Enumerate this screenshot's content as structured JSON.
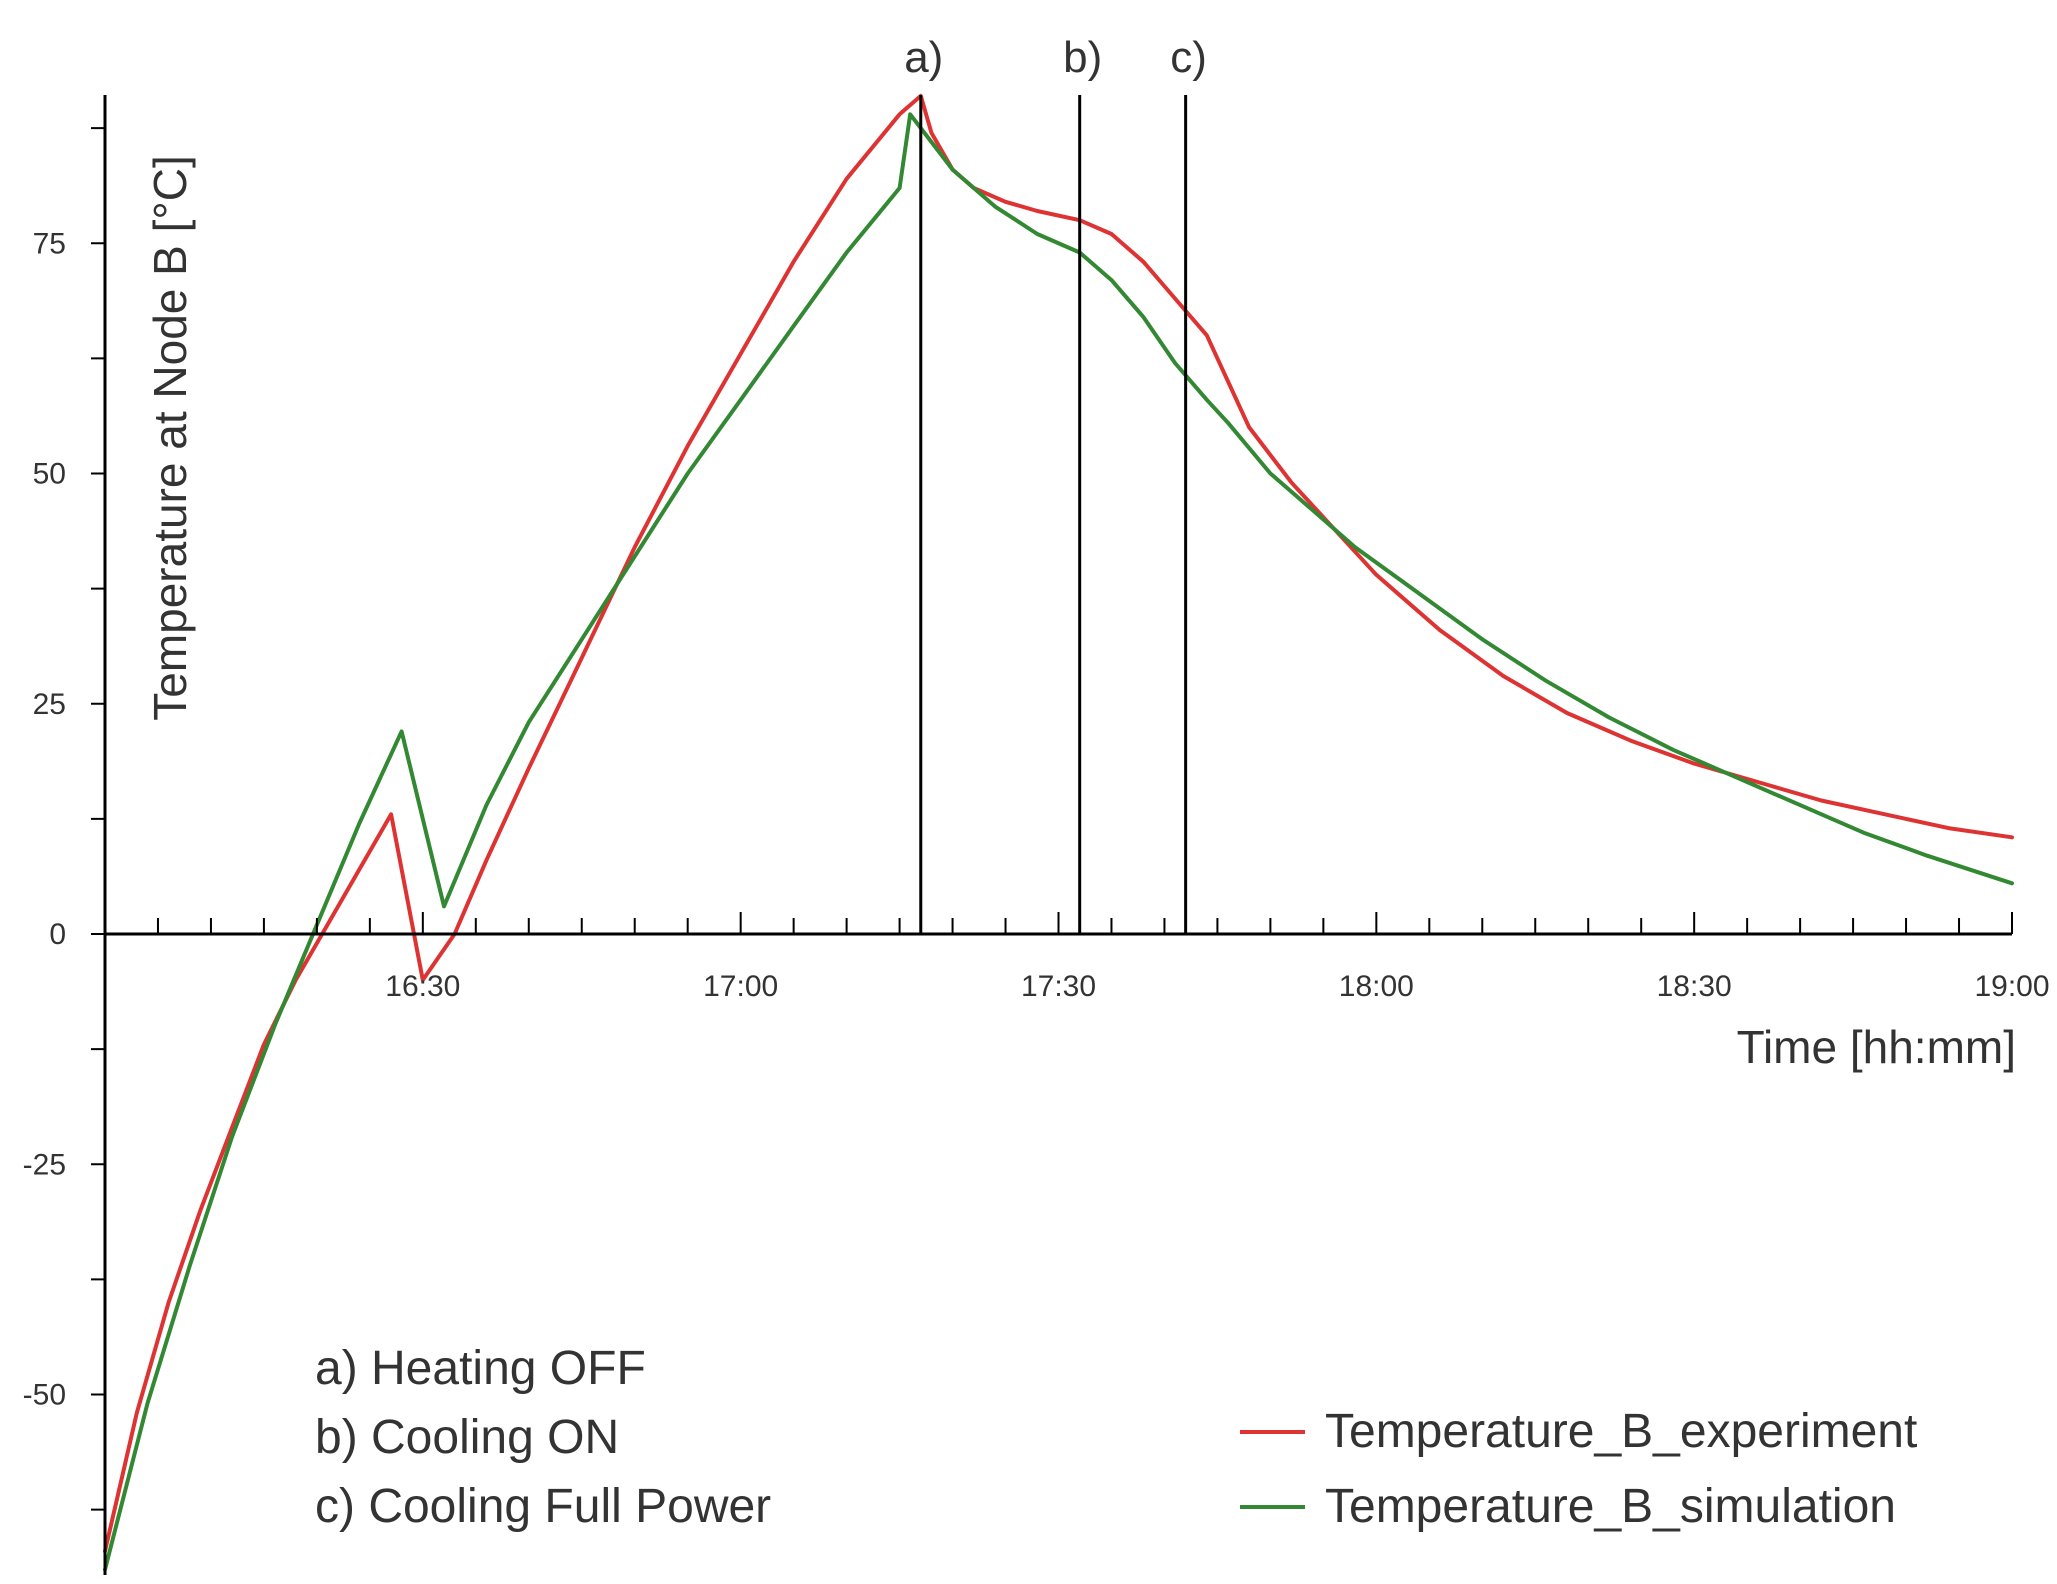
{
  "chart_data": {
    "type": "line",
    "xlabel": "Time [hh:mm]",
    "ylabel": "Temperature at Node B [°C]",
    "x_unit": "time of day (hh:mm)",
    "xlim": [
      "16:00",
      "19:00"
    ],
    "ylim": [
      -70,
      92
    ],
    "x_ticks": [
      "16:30",
      "17:00",
      "17:30",
      "18:00",
      "18:30",
      "19:00"
    ],
    "y_ticks": [
      -50,
      -25,
      0,
      25,
      50,
      75
    ],
    "grid": false,
    "legend_position": "bottom-right",
    "series": [
      {
        "name": "Temperature_B_experiment",
        "color": "#dd3333",
        "points": [
          [
            "16:00",
            -67
          ],
          [
            "16:03",
            -52
          ],
          [
            "16:06",
            -40
          ],
          [
            "16:09",
            -30
          ],
          [
            "16:12",
            -21
          ],
          [
            "16:15",
            -12
          ],
          [
            "16:18",
            -5
          ],
          [
            "16:21",
            1
          ],
          [
            "16:24",
            7
          ],
          [
            "16:27",
            13
          ],
          [
            "16:30",
            -5
          ],
          [
            "16:33",
            0
          ],
          [
            "16:36",
            8
          ],
          [
            "16:40",
            18
          ],
          [
            "16:45",
            30
          ],
          [
            "16:50",
            42
          ],
          [
            "16:55",
            53
          ],
          [
            "17:00",
            63
          ],
          [
            "17:05",
            73
          ],
          [
            "17:10",
            82
          ],
          [
            "17:15",
            89
          ],
          [
            "17:17",
            91
          ],
          [
            "17:18",
            87
          ],
          [
            "17:20",
            83
          ],
          [
            "17:22",
            81
          ],
          [
            "17:25",
            79.5
          ],
          [
            "17:28",
            78.5
          ],
          [
            "17:32",
            77.5
          ],
          [
            "17:35",
            76
          ],
          [
            "17:38",
            73
          ],
          [
            "17:41",
            69
          ],
          [
            "17:44",
            65
          ],
          [
            "17:46",
            60
          ],
          [
            "17:48",
            55
          ],
          [
            "17:52",
            49
          ],
          [
            "17:56",
            44
          ],
          [
            "18:00",
            39
          ],
          [
            "18:06",
            33
          ],
          [
            "18:12",
            28
          ],
          [
            "18:18",
            24
          ],
          [
            "18:24",
            21
          ],
          [
            "18:30",
            18.5
          ],
          [
            "18:36",
            16.5
          ],
          [
            "18:42",
            14.5
          ],
          [
            "18:48",
            13
          ],
          [
            "18:54",
            11.5
          ],
          [
            "19:00",
            10.5
          ]
        ]
      },
      {
        "name": "Temperature_B_simulation",
        "color": "#338833",
        "points": [
          [
            "16:00",
            -69
          ],
          [
            "16:04",
            -51
          ],
          [
            "16:08",
            -36
          ],
          [
            "16:12",
            -22
          ],
          [
            "16:16",
            -10
          ],
          [
            "16:20",
            1
          ],
          [
            "16:24",
            12
          ],
          [
            "16:28",
            22
          ],
          [
            "16:32",
            3
          ],
          [
            "16:36",
            14
          ],
          [
            "16:40",
            23
          ],
          [
            "16:45",
            32
          ],
          [
            "16:50",
            41
          ],
          [
            "16:55",
            50
          ],
          [
            "17:00",
            58
          ],
          [
            "17:05",
            66
          ],
          [
            "17:10",
            74
          ],
          [
            "17:15",
            81
          ],
          [
            "17:16",
            89
          ],
          [
            "17:20",
            83
          ],
          [
            "17:24",
            79
          ],
          [
            "17:28",
            76
          ],
          [
            "17:32",
            74
          ],
          [
            "17:35",
            71
          ],
          [
            "17:38",
            67
          ],
          [
            "17:41",
            62
          ],
          [
            "17:44",
            58
          ],
          [
            "17:46",
            55.5
          ],
          [
            "17:50",
            50
          ],
          [
            "17:54",
            46
          ],
          [
            "17:58",
            42
          ],
          [
            "18:04",
            37
          ],
          [
            "18:10",
            32
          ],
          [
            "18:16",
            27.5
          ],
          [
            "18:22",
            23.5
          ],
          [
            "18:28",
            20
          ],
          [
            "18:34",
            17
          ],
          [
            "18:40",
            14
          ],
          [
            "18:46",
            11
          ],
          [
            "18:52",
            8.5
          ],
          [
            "19:00",
            5.5
          ]
        ]
      }
    ],
    "markers": [
      {
        "label": "a)",
        "time": "17:17"
      },
      {
        "label": "b)",
        "time": "17:32"
      },
      {
        "label": "c)",
        "time": "17:42"
      }
    ],
    "annotations": [
      "a) Heating OFF",
      "b) Cooling ON",
      "c) Cooling Full Power"
    ]
  }
}
